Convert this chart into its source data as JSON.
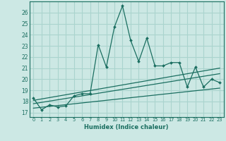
{
  "xlabel": "Humidex (Indice chaleur)",
  "bg_color": "#cce8e4",
  "grid_color": "#aad4ce",
  "line_color": "#1a6e60",
  "xlim": [
    -0.5,
    23.5
  ],
  "ylim": [
    16.6,
    27.0
  ],
  "xticks": [
    0,
    1,
    2,
    3,
    4,
    5,
    6,
    7,
    8,
    9,
    10,
    11,
    12,
    13,
    14,
    15,
    16,
    17,
    18,
    19,
    20,
    21,
    22,
    23
  ],
  "yticks": [
    17,
    18,
    19,
    20,
    21,
    22,
    23,
    24,
    25,
    26
  ],
  "main_x": [
    0,
    1,
    2,
    3,
    4,
    5,
    6,
    7,
    8,
    9,
    10,
    11,
    12,
    13,
    14,
    15,
    16,
    17,
    18,
    19,
    20,
    21,
    22,
    23
  ],
  "main_y": [
    18.3,
    17.25,
    17.7,
    17.5,
    17.6,
    18.5,
    18.7,
    18.7,
    23.1,
    21.1,
    24.7,
    26.6,
    23.5,
    21.6,
    23.7,
    21.2,
    21.2,
    21.5,
    21.5,
    19.3,
    21.1,
    19.3,
    20.0,
    19.7
  ],
  "line1_x": [
    0,
    23
  ],
  "line1_y": [
    18.1,
    21.0
  ],
  "line2_x": [
    0,
    23
  ],
  "line2_y": [
    17.8,
    20.5
  ],
  "line3_x": [
    0,
    23
  ],
  "line3_y": [
    17.4,
    19.2
  ]
}
